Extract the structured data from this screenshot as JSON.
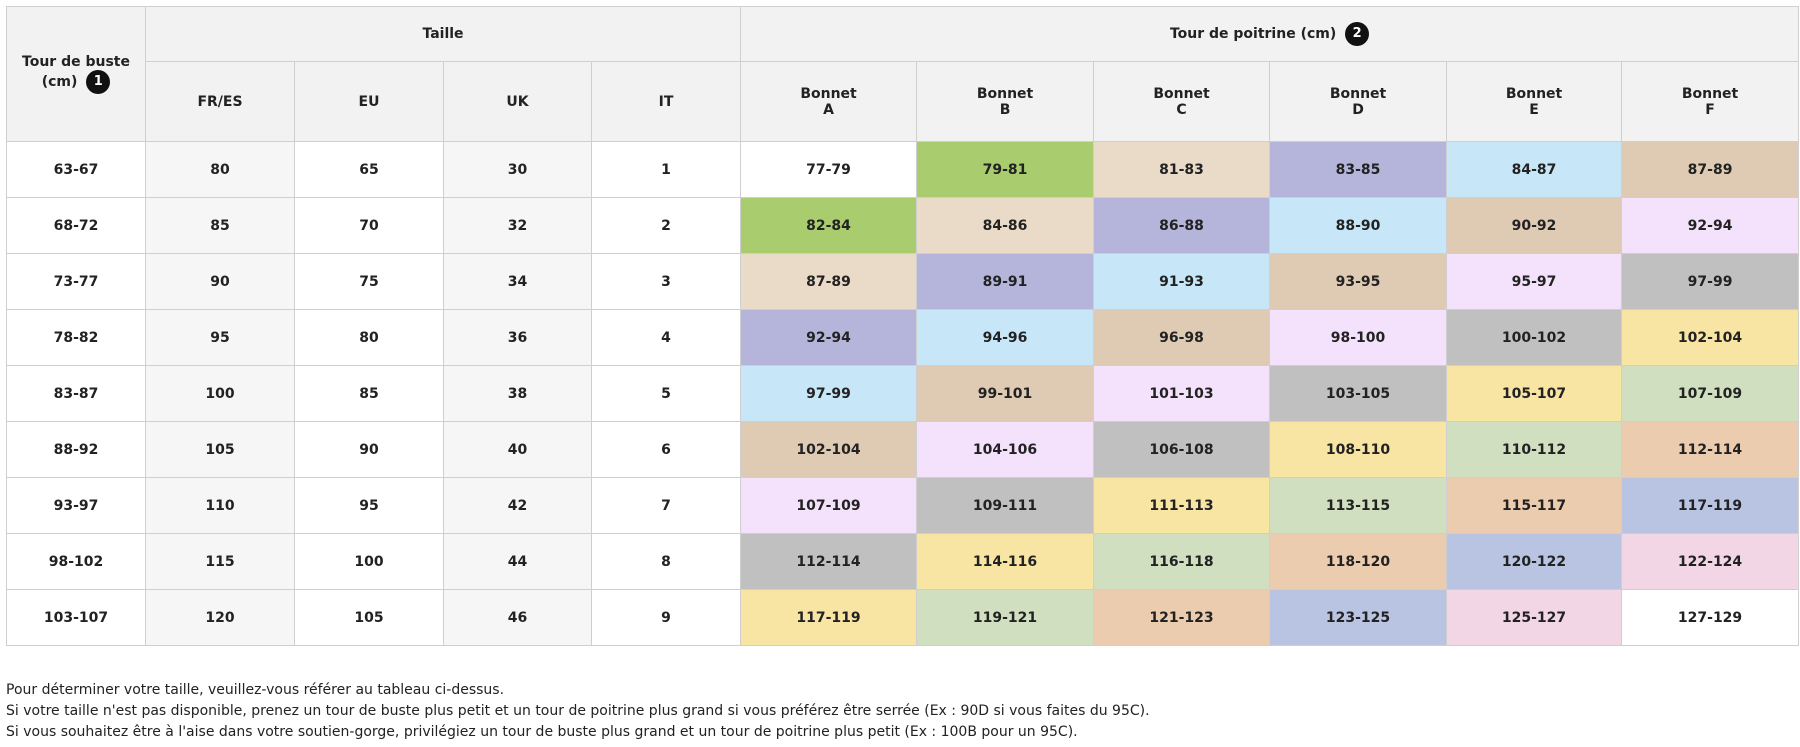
{
  "table": {
    "bust_header": "Tour de buste (cm)",
    "bust_note": "1",
    "size_header": "Taille",
    "size_columns": [
      "FR/ES",
      "EU",
      "UK",
      "IT"
    ],
    "cup_header": "Tour de poitrine (cm)",
    "cup_note": "2",
    "cup_columns": [
      [
        "Bonnet",
        "A"
      ],
      [
        "Bonnet",
        "B"
      ],
      [
        "Bonnet",
        "C"
      ],
      [
        "Bonnet",
        "D"
      ],
      [
        "Bonnet",
        "E"
      ],
      [
        "Bonnet",
        "F"
      ]
    ],
    "rows": [
      [
        "63-67",
        "80",
        "65",
        "30",
        "1",
        "77-79",
        "79-81",
        "81-83",
        "83-85",
        "84-87",
        "87-89"
      ],
      [
        "68-72",
        "85",
        "70",
        "32",
        "2",
        "82-84",
        "84-86",
        "86-88",
        "88-90",
        "90-92",
        "92-94"
      ],
      [
        "73-77",
        "90",
        "75",
        "34",
        "3",
        "87-89",
        "89-91",
        "91-93",
        "93-95",
        "95-97",
        "97-99"
      ],
      [
        "78-82",
        "95",
        "80",
        "36",
        "4",
        "92-94",
        "94-96",
        "96-98",
        "98-100",
        "100-102",
        "102-104"
      ],
      [
        "83-87",
        "100",
        "85",
        "38",
        "5",
        "97-99",
        "99-101",
        "101-103",
        "103-105",
        "105-107",
        "107-109"
      ],
      [
        "88-92",
        "105",
        "90",
        "40",
        "6",
        "102-104",
        "104-106",
        "106-108",
        "108-110",
        "110-112",
        "112-114"
      ],
      [
        "93-97",
        "110",
        "95",
        "42",
        "7",
        "107-109",
        "109-111",
        "111-113",
        "113-115",
        "115-117",
        "117-119"
      ],
      [
        "98-102",
        "115",
        "100",
        "44",
        "8",
        "112-114",
        "114-116",
        "116-118",
        "118-120",
        "120-122",
        "122-124"
      ],
      [
        "103-107",
        "120",
        "105",
        "46",
        "9",
        "117-119",
        "119-121",
        "121-123",
        "123-125",
        "125-127",
        "127-129"
      ]
    ],
    "colors": [
      "#ffffff",
      "#a8cc6e",
      "#eadbc8",
      "#b5b5dc",
      "#c7e6f7",
      "#dfcbb4",
      "#f4e1fb",
      "#c0c0c0",
      "#f8e4a3",
      "#cfdfbf",
      "#ecccaf",
      "#b8c4e2",
      "#f2d6e5",
      "#ffffff"
    ]
  },
  "notes": [
    "Pour déterminer votre taille, veuillez-vous référer au tableau ci-dessus.",
    "Si votre taille n'est pas disponible, prenez un tour de buste plus petit et un tour de poitrine plus grand si vous préférez être serrée (Ex : 90D si vous faites du 95C).",
    "Si vous souhaitez être à l'aise dans votre soutien-gorge, privilégiez un tour de buste plus grand et un tour de poitrine plus petit (Ex : 100B pour un 95C)."
  ]
}
